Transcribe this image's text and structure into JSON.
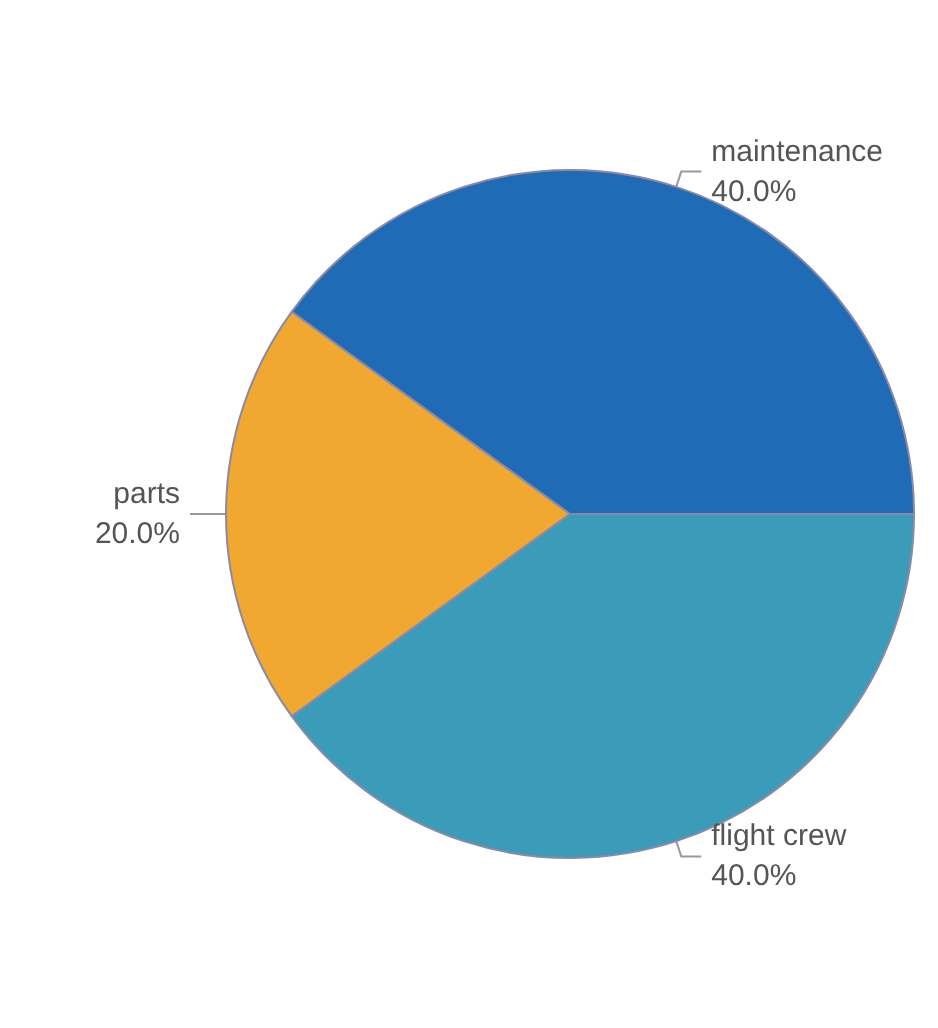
{
  "chart_data": {
    "type": "pie",
    "categories": [
      "maintenance",
      "parts",
      "flight crew"
    ],
    "values": [
      40,
      20,
      40
    ],
    "value_labels": [
      "40.0%",
      "20.0%",
      "40.0%"
    ],
    "colors": [
      "#1f6bb5",
      "#f0a830",
      "#3a9cb8"
    ]
  }
}
